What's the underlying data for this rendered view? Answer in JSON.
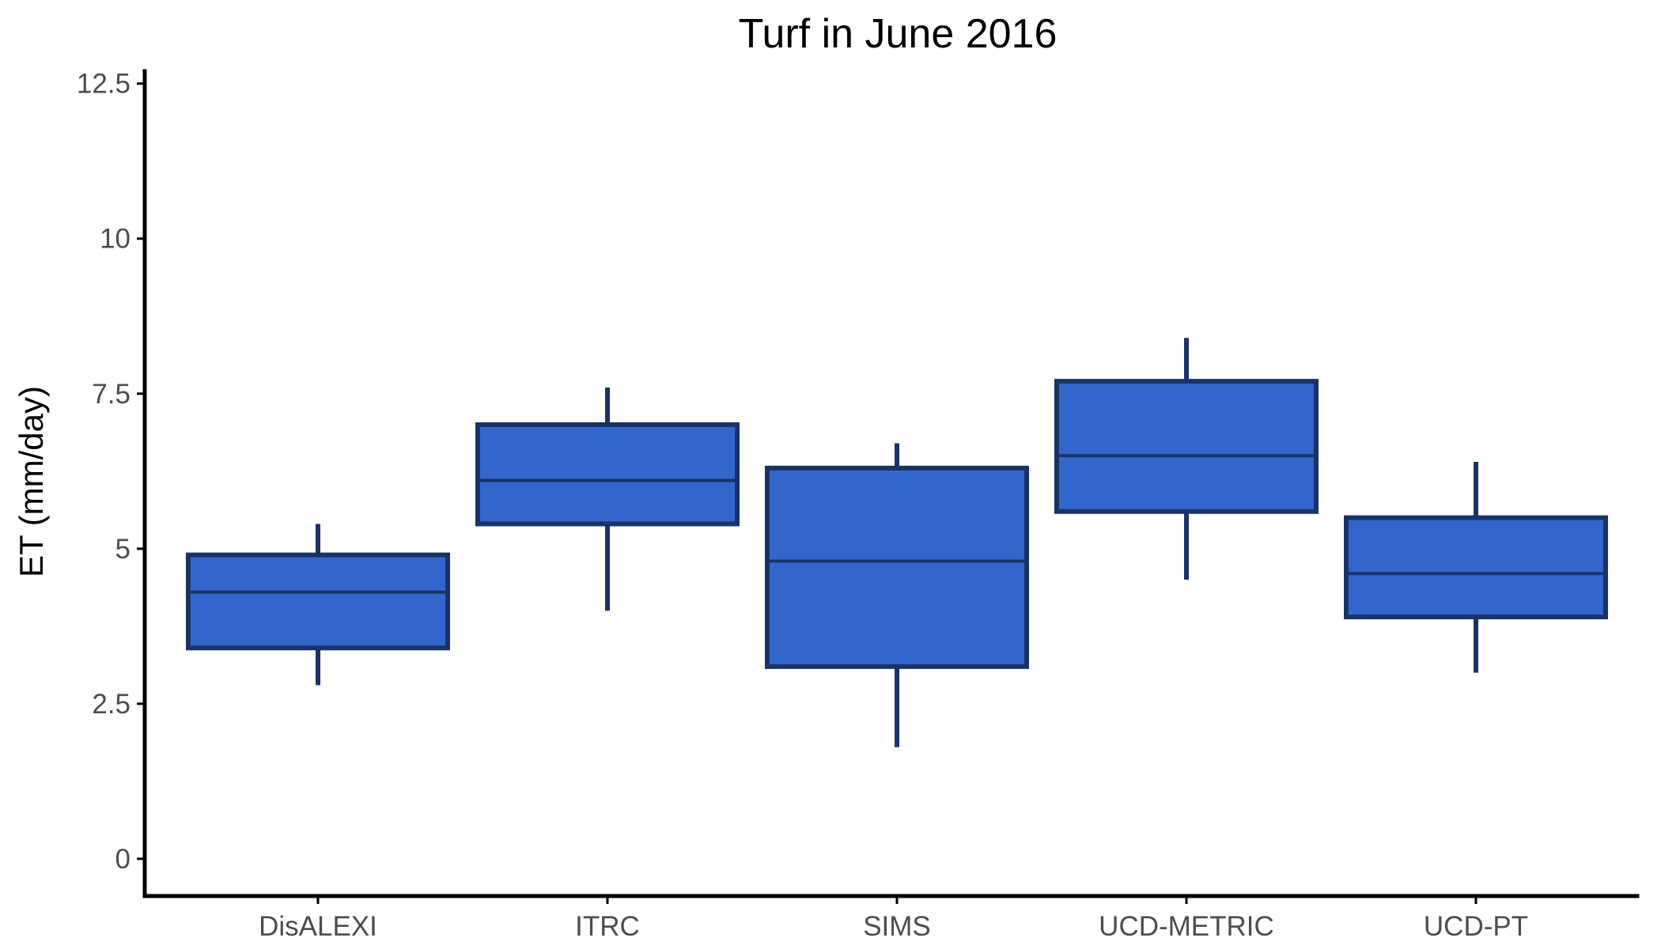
{
  "chart_data": {
    "type": "boxplot",
    "title": "Turf in June 2016",
    "xlabel": "",
    "ylabel": "ET (mm/day)",
    "ylim": [
      -0.6,
      12.7
    ],
    "yticks": [
      0,
      2.5,
      5,
      7.5,
      10,
      12.5
    ],
    "ytick_labels": [
      "0",
      "2.5",
      "5",
      "7.5",
      "10",
      "12.5"
    ],
    "grid": false,
    "legend": "none",
    "categories": [
      "DisALEXI",
      "ITRC",
      "SIMS",
      "UCD-METRIC",
      "UCD-PT"
    ],
    "boxes": [
      {
        "category": "DisALEXI",
        "whisker_low": 2.8,
        "q1": 3.4,
        "median": 4.3,
        "q3": 4.9,
        "whisker_high": 5.4
      },
      {
        "category": "ITRC",
        "whisker_low": 4.0,
        "q1": 5.4,
        "median": 6.1,
        "q3": 7.0,
        "whisker_high": 7.6
      },
      {
        "category": "SIMS",
        "whisker_low": 1.8,
        "q1": 3.1,
        "median": 4.8,
        "q3": 6.3,
        "whisker_high": 6.7
      },
      {
        "category": "UCD-METRIC",
        "whisker_low": 4.5,
        "q1": 5.6,
        "median": 6.5,
        "q3": 7.7,
        "whisker_high": 8.4
      },
      {
        "category": "UCD-PT",
        "whisker_low": 3.0,
        "q1": 3.9,
        "median": 4.6,
        "q3": 5.5,
        "whisker_high": 6.4
      }
    ],
    "colors": {
      "fill": "#3366cc",
      "stroke": "#1a3366",
      "axis": "#000000",
      "tick_text": "#4d4d4d"
    }
  }
}
